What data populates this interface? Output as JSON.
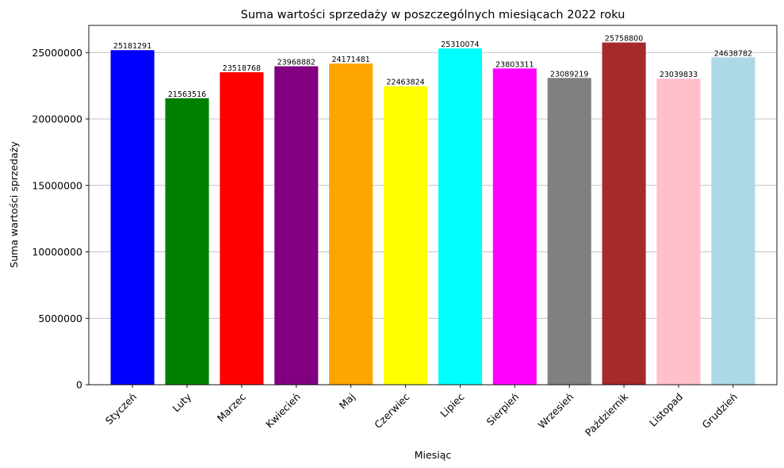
{
  "chart_data": {
    "type": "bar",
    "title": "Suma wartości sprzedaży w poszczególnych miesiącach 2022 roku",
    "xlabel": "Miesiąc",
    "ylabel": "Suma wartości sprzedaży",
    "categories": [
      "Styczeń",
      "Luty",
      "Marzec",
      "Kwiecień",
      "Maj",
      "Czerwiec",
      "Lipiec",
      "Sierpień",
      "Wrzesień",
      "Październik",
      "Listopad",
      "Grudzień"
    ],
    "values": [
      25181291,
      21563516,
      23518768,
      23968882,
      24171481,
      22463824,
      25310074,
      23803311,
      23089219,
      25758800,
      23039833,
      24638782
    ],
    "value_labels": [
      "25181291",
      "21563516",
      "23518768",
      "23968882",
      "24171481",
      "22463824",
      "25310074",
      "23803311",
      "23089219",
      "25758800",
      "23039833",
      "24638782"
    ],
    "colors": [
      "#0000ff",
      "#008000",
      "#ff0000",
      "#800080",
      "#ffa500",
      "#ffff00",
      "#00ffff",
      "#ff00ff",
      "#808080",
      "#a52a2a",
      "#ffc0cb",
      "#add8e6"
    ],
    "yticks": [
      0,
      5000000,
      10000000,
      15000000,
      20000000,
      25000000
    ],
    "ytick_labels": [
      "0",
      "5000000",
      "10000000",
      "15000000",
      "20000000",
      "25000000"
    ],
    "ylim": [
      0,
      27045740
    ],
    "grid": "y-axis only",
    "legend": "none"
  }
}
